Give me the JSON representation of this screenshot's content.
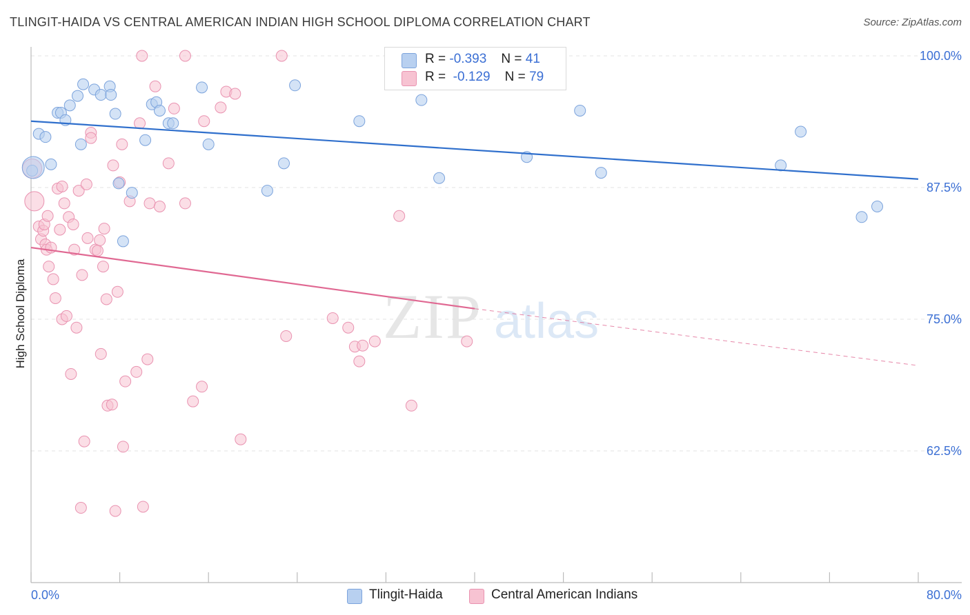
{
  "title": "TLINGIT-HAIDA VS CENTRAL AMERICAN INDIAN HIGH SCHOOL DIPLOMA CORRELATION CHART",
  "source": "Source: ZipAtlas.com",
  "watermark": {
    "zip": "ZIP",
    "atlas": "atlas"
  },
  "stats": {
    "blue": {
      "r_label": "R =",
      "r": "-0.393",
      "n_label": "N =",
      "n": "41"
    },
    "pink": {
      "r_label": "R =",
      "r": "-0.129",
      "n_label": "N =",
      "n": "79"
    }
  },
  "legend": {
    "blue": "Tlingit-Haida",
    "pink": "Central American Indians"
  },
  "colors": {
    "blue_fill": "#b8d0f0",
    "blue_stroke": "#7ba3dc",
    "blue_line": "#2f6fcc",
    "pink_fill": "#f7c3d2",
    "pink_stroke": "#e992b0",
    "pink_line": "#e06892",
    "tick_label": "#3b6fd4",
    "grid": "#e3e3e3"
  },
  "chart_data": {
    "type": "scatter",
    "xlabel": "",
    "ylabel": "High School Diploma",
    "xlim": [
      0,
      80
    ],
    "ylim": [
      50,
      100
    ],
    "x_tick_labels": [
      "0.0%",
      "80.0%"
    ],
    "y_ticks": [
      100,
      87.5,
      75,
      62.5
    ],
    "y_tick_labels": [
      "100.0%",
      "87.5%",
      "75.0%",
      "62.5%"
    ],
    "grid": true,
    "series": [
      {
        "name": "Tlingit-Haida",
        "color": "#7ba3dc",
        "points": [
          [
            0.1,
            89.1
          ],
          [
            0.7,
            92.6
          ],
          [
            1.3,
            92.3
          ],
          [
            1.8,
            89.7
          ],
          [
            2.4,
            94.6
          ],
          [
            2.7,
            94.6
          ],
          [
            3.1,
            93.9
          ],
          [
            3.5,
            95.3
          ],
          [
            4.2,
            96.2
          ],
          [
            4.5,
            91.6
          ],
          [
            4.7,
            97.3
          ],
          [
            5.7,
            96.8
          ],
          [
            6.3,
            96.3
          ],
          [
            7.1,
            97.1
          ],
          [
            7.2,
            96.3
          ],
          [
            7.6,
            94.5
          ],
          [
            7.9,
            87.9
          ],
          [
            8.3,
            82.4
          ],
          [
            9.1,
            87.0
          ],
          [
            10.3,
            92.0
          ],
          [
            10.9,
            95.4
          ],
          [
            11.3,
            95.6
          ],
          [
            11.6,
            94.8
          ],
          [
            12.4,
            93.6
          ],
          [
            12.8,
            93.6
          ],
          [
            15.4,
            97.0
          ],
          [
            16.0,
            91.6
          ],
          [
            21.3,
            87.2
          ],
          [
            22.8,
            89.8
          ],
          [
            23.8,
            97.2
          ],
          [
            29.6,
            93.8
          ],
          [
            35.2,
            95.8
          ],
          [
            36.8,
            88.4
          ],
          [
            44.7,
            90.4
          ],
          [
            49.5,
            94.8
          ],
          [
            51.4,
            88.9
          ],
          [
            67.6,
            89.6
          ],
          [
            69.4,
            92.8
          ],
          [
            74.9,
            84.7
          ],
          [
            76.3,
            85.7
          ],
          [
            0.2,
            89.4
          ]
        ]
      },
      {
        "name": "Central American Indians",
        "color": "#e992b0",
        "points": [
          [
            0.3,
            86.2
          ],
          [
            0.7,
            83.8
          ],
          [
            0.9,
            82.6
          ],
          [
            1.1,
            83.4
          ],
          [
            1.2,
            84.0
          ],
          [
            1.3,
            82.1
          ],
          [
            1.4,
            81.6
          ],
          [
            1.5,
            84.8
          ],
          [
            1.6,
            80.0
          ],
          [
            1.8,
            81.8
          ],
          [
            2.0,
            78.8
          ],
          [
            2.2,
            77.0
          ],
          [
            2.4,
            87.4
          ],
          [
            2.6,
            83.5
          ],
          [
            2.8,
            87.6
          ],
          [
            2.8,
            75.0
          ],
          [
            3.0,
            86.0
          ],
          [
            3.2,
            75.3
          ],
          [
            3.4,
            84.7
          ],
          [
            3.6,
            69.8
          ],
          [
            3.8,
            84.0
          ],
          [
            3.9,
            81.6
          ],
          [
            4.1,
            74.2
          ],
          [
            4.3,
            87.2
          ],
          [
            4.5,
            57.1
          ],
          [
            4.6,
            79.2
          ],
          [
            4.8,
            63.4
          ],
          [
            5.0,
            87.8
          ],
          [
            5.1,
            82.7
          ],
          [
            5.4,
            92.7
          ],
          [
            5.4,
            92.2
          ],
          [
            5.8,
            81.6
          ],
          [
            6.0,
            81.5
          ],
          [
            6.2,
            82.5
          ],
          [
            6.3,
            71.7
          ],
          [
            6.5,
            80.0
          ],
          [
            6.6,
            83.6
          ],
          [
            6.8,
            76.9
          ],
          [
            6.9,
            66.8
          ],
          [
            7.3,
            66.9
          ],
          [
            7.4,
            89.6
          ],
          [
            7.6,
            56.8
          ],
          [
            7.8,
            77.6
          ],
          [
            8.0,
            88.0
          ],
          [
            8.2,
            91.6
          ],
          [
            8.3,
            62.9
          ],
          [
            8.5,
            69.1
          ],
          [
            8.9,
            86.2
          ],
          [
            9.5,
            70.0
          ],
          [
            9.8,
            93.6
          ],
          [
            10.0,
            100.0
          ],
          [
            10.1,
            57.2
          ],
          [
            10.5,
            71.2
          ],
          [
            10.7,
            86.0
          ],
          [
            11.2,
            97.1
          ],
          [
            11.6,
            85.7
          ],
          [
            12.4,
            89.8
          ],
          [
            12.9,
            95.0
          ],
          [
            13.9,
            86.0
          ],
          [
            13.9,
            100.0
          ],
          [
            14.6,
            67.2
          ],
          [
            15.4,
            68.6
          ],
          [
            15.6,
            93.8
          ],
          [
            17.1,
            95.1
          ],
          [
            17.6,
            96.6
          ],
          [
            18.4,
            96.4
          ],
          [
            18.9,
            63.6
          ],
          [
            22.6,
            100.0
          ],
          [
            23.0,
            73.4
          ],
          [
            27.2,
            75.1
          ],
          [
            28.6,
            74.2
          ],
          [
            29.2,
            72.4
          ],
          [
            29.6,
            71.0
          ],
          [
            29.9,
            72.5
          ],
          [
            31.0,
            72.9
          ],
          [
            33.2,
            84.8
          ],
          [
            34.3,
            66.8
          ],
          [
            39.3,
            72.9
          ],
          [
            0.1,
            89.3
          ]
        ]
      }
    ],
    "trendlines": [
      {
        "series": "Tlingit-Haida",
        "x0": 0,
        "y0": 93.8,
        "x1": 80,
        "y1": 88.3,
        "style": "solid"
      },
      {
        "series": "Central American Indians",
        "x0": 0,
        "y0": 81.8,
        "x1": 40,
        "y1": 76.0,
        "style": "solid"
      },
      {
        "series": "Central American Indians",
        "x0": 40,
        "y0": 76.0,
        "x1": 80,
        "y1": 70.6,
        "style": "dashed"
      }
    ]
  }
}
